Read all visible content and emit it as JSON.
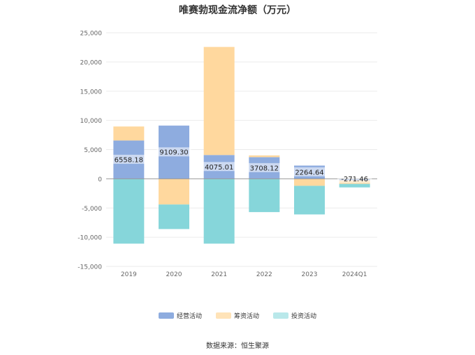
{
  "chart_data": {
    "type": "bar",
    "stacked": true,
    "title": "唯赛勃现金流净额（万元）",
    "categories": [
      "2019",
      "2020",
      "2021",
      "2022",
      "2023",
      "2024Q1"
    ],
    "series": [
      {
        "name": "经营活动",
        "color": "#8EACDF",
        "values": [
          6558.18,
          9109.3,
          4075.01,
          3708.12,
          2264.64,
          -271.46
        ]
      },
      {
        "name": "筹资活动",
        "color": "#FFD89E",
        "values": [
          2400,
          -4400,
          18500,
          300,
          -1200,
          -600
        ]
      },
      {
        "name": "投资活动",
        "color": "#86D6DA",
        "values": [
          -11100,
          -4200,
          -11100,
          -5700,
          -4900,
          -600
        ]
      }
    ],
    "labels": [
      "6558.18",
      "9109.30",
      "4075.01",
      "3708.12",
      "2264.64",
      "-271.46"
    ],
    "ylim": [
      -15000,
      25000
    ],
    "yticks": [
      "-15,000",
      "-10,000",
      "-5,000",
      "0",
      "5,000",
      "10,000",
      "15,000",
      "20,000",
      "25,000"
    ],
    "ytick_values": [
      -15000,
      -10000,
      -5000,
      0,
      5000,
      10000,
      15000,
      20000,
      25000
    ],
    "grid": true,
    "legend_position": "bottom"
  },
  "source": "数据来源：恒生聚源"
}
